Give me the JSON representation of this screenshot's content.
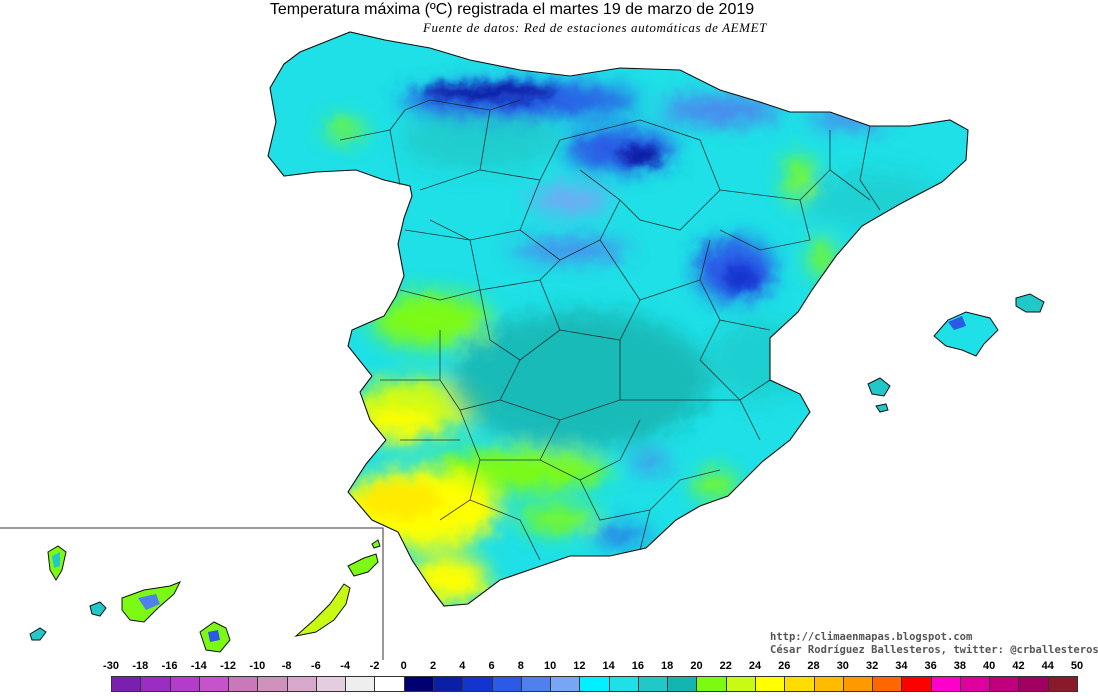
{
  "header": {
    "title": "Temperatura máxima (ºC) registrada el martes 19 de marzo de 2019",
    "subtitle": "Fuente de datos: Red de estaciones automáticas de AEMET"
  },
  "credits": {
    "blog": "http://climaenmapas.blogspot.com",
    "author": "César Rodríguez Ballesteros, twitter: @crballesteros"
  },
  "legend": {
    "ticks": [
      "-30",
      "-18",
      "-16",
      "-14",
      "-12",
      "-10",
      "-8",
      "-6",
      "-4",
      "-2",
      "0",
      "2",
      "4",
      "6",
      "8",
      "10",
      "12",
      "14",
      "16",
      "18",
      "20",
      "22",
      "24",
      "26",
      "28",
      "30",
      "32",
      "34",
      "36",
      "38",
      "40",
      "42",
      "44",
      "50"
    ],
    "colors": [
      "#7a1fae",
      "#9b2cc4",
      "#b43ccd",
      "#c653c9",
      "#c978b9",
      "#cf92bd",
      "#d9a9cb",
      "#e5cde0",
      "#eeeeee",
      "#ffffff",
      "#000070",
      "#0a1ea6",
      "#1434d0",
      "#2a5ae6",
      "#5080ee",
      "#78a6f4",
      "#00f0ff",
      "#1ee0e6",
      "#20c8c8",
      "#14b4b0",
      "#7dfa14",
      "#c8fa14",
      "#ffff00",
      "#ffdd00",
      "#ffbb00",
      "#ff9900",
      "#ff6600",
      "#ff0000",
      "#ff00cc",
      "#e0009e",
      "#c0007a",
      "#a00060",
      "#8a1a2a"
    ]
  }
}
